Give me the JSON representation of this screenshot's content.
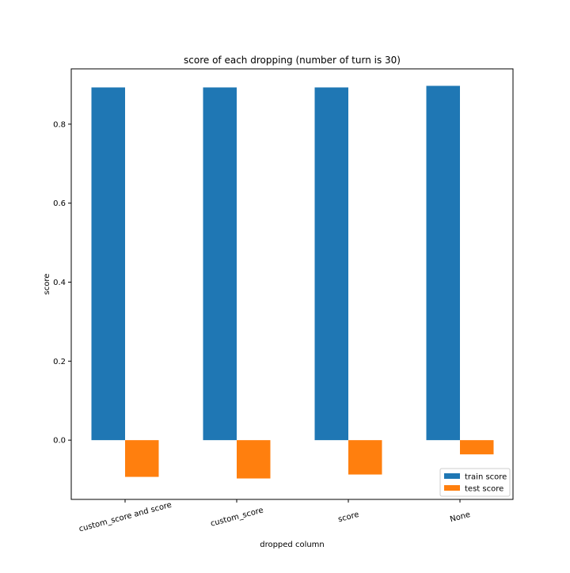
{
  "chart_data": {
    "type": "bar",
    "title": "score of each dropping (number of turn is 30)",
    "xlabel": "dropped column",
    "ylabel": "score",
    "categories": [
      "custom_score and score",
      "custom_score",
      "score",
      "None"
    ],
    "series": [
      {
        "name": "train score",
        "color": "#1f77b4",
        "values": [
          0.893,
          0.893,
          0.893,
          0.897
        ]
      },
      {
        "name": "test score",
        "color": "#ff7f0e",
        "values": [
          -0.093,
          -0.097,
          -0.087,
          -0.036
        ]
      }
    ],
    "ylim": [
      -0.15,
      0.94
    ],
    "yticks": [
      0.0,
      0.2,
      0.4,
      0.6,
      0.8
    ],
    "ytick_labels": [
      "0.0",
      "0.2",
      "0.4",
      "0.6",
      "0.8"
    ],
    "grid": false,
    "legend": {
      "placement": "lower-right"
    }
  }
}
